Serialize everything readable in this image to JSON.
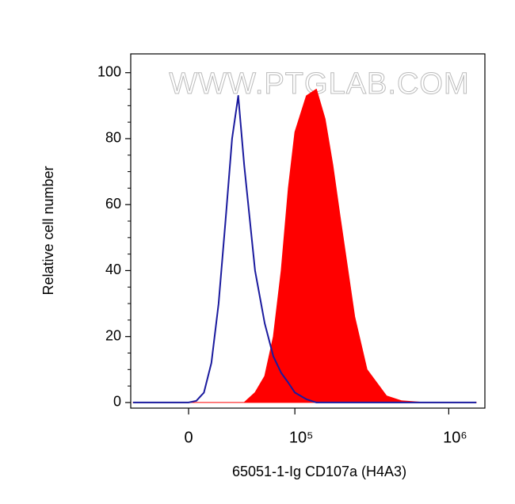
{
  "chart_data": {
    "type": "histogram-overlay",
    "watermark": "WWW.PTGLAB.COM",
    "xlabel": "65051-1-Ig CD107a (H4A3)",
    "ylabel": "Relative cell number",
    "xscale": "biexponential",
    "x": [
      -40000,
      -20000,
      0,
      5000,
      10000,
      15000,
      20000,
      25000,
      30000,
      35000,
      40000,
      50000,
      60000,
      70000,
      80000,
      90000,
      100000,
      120000,
      140000,
      160000,
      180000,
      200000,
      250000,
      300000,
      400000,
      500000,
      700000,
      1000000,
      1500000
    ],
    "series": [
      {
        "style": "line",
        "color": "#1a1a9e",
        "values": [
          0,
          0,
          0,
          0.5,
          3,
          12,
          30,
          55,
          80,
          93,
          72,
          40,
          24,
          14,
          9,
          6,
          3,
          1,
          0,
          0,
          0,
          0,
          0,
          0,
          0,
          0,
          0,
          0,
          0
        ]
      },
      {
        "style": "area",
        "color": "#ff0000",
        "values": [
          0,
          0,
          0,
          0,
          0,
          0,
          0,
          0,
          0,
          0,
          0,
          3,
          8,
          20,
          40,
          65,
          82,
          93,
          95,
          86,
          72,
          57,
          26,
          10,
          2,
          0.5,
          0,
          0,
          0
        ]
      }
    ],
    "xlim": [
      -42000,
      1700000
    ],
    "xticks": [
      0,
      {
        "value": 100000,
        "label": "10⁵"
      },
      {
        "value": 1000000,
        "label": "10⁶"
      }
    ],
    "ylim": [
      -1.7,
      105.7
    ],
    "yticks": [
      0,
      20,
      40,
      60,
      80,
      100
    ]
  }
}
